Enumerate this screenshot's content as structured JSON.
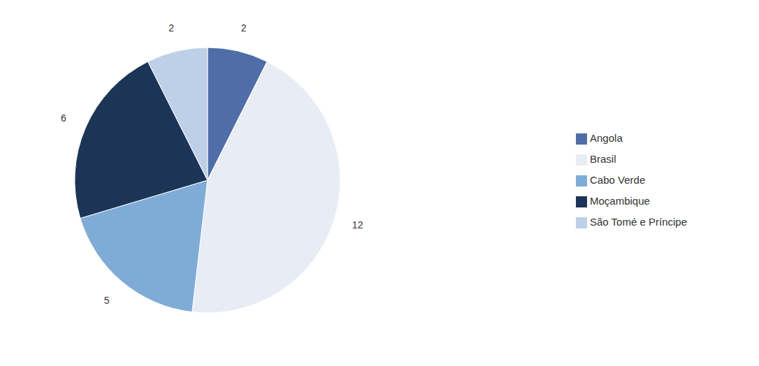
{
  "chart_data": {
    "type": "pie",
    "categories": [
      "Angola",
      "Brasil",
      "Cabo Verde",
      "Moçambique",
      "São Tomé e Príncipe"
    ],
    "values": [
      2,
      12,
      5,
      6,
      2
    ],
    "colors": [
      "#4F6EA8",
      "#E8EDF5",
      "#7FACD6",
      "#1C3557",
      "#BDD0E8"
    ],
    "data_labels": true,
    "legend": "right"
  }
}
